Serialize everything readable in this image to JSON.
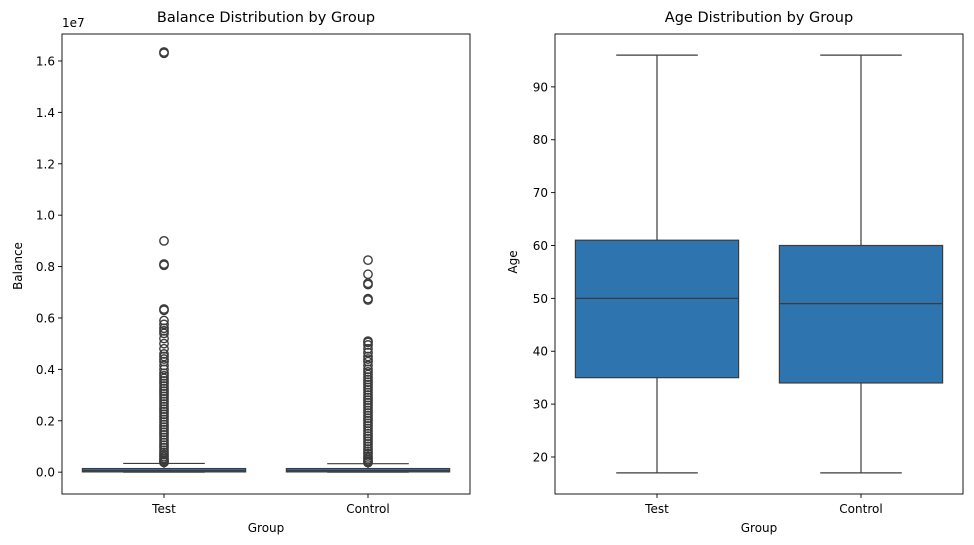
{
  "figure": {
    "background": "#ffffff"
  },
  "style": {
    "box_fill": "#2e75b0",
    "line_color": "#3b3b3b",
    "axis_color": "#000000"
  },
  "chart_data": [
    {
      "type": "box",
      "title": "Balance Distribution by Group",
      "xlabel": "Group",
      "ylabel": "Balance",
      "y_offset_label": "1e7",
      "categories": [
        "Test",
        "Control"
      ],
      "ylim": [
        -850000,
        17050000
      ],
      "yticks": [
        0,
        2000000,
        4000000,
        6000000,
        8000000,
        10000000,
        12000000,
        14000000,
        16000000
      ],
      "ytick_labels": [
        "0.0",
        "0.2",
        "0.4",
        "0.6",
        "0.8",
        "1.0",
        "1.2",
        "1.4",
        "1.6"
      ],
      "boxes": [
        {
          "name": "Test",
          "whisker_low": 0,
          "q1": 10000,
          "median": 60000,
          "q3": 140000,
          "whisker_high": 340000,
          "outliers": [
            380000,
            420000,
            470000,
            530000,
            600000,
            680000,
            760000,
            850000,
            950000,
            1050000,
            1150000,
            1250000,
            1350000,
            1450000,
            1550000,
            1650000,
            1750000,
            1850000,
            1950000,
            2050000,
            2150000,
            2250000,
            2350000,
            2450000,
            2550000,
            2650000,
            2750000,
            2850000,
            2950000,
            3050000,
            3150000,
            3250000,
            3350000,
            3450000,
            3550000,
            3650000,
            3750000,
            3850000,
            4000000,
            4150000,
            4300000,
            4400000,
            4500000,
            4600000,
            4800000,
            5000000,
            5200000,
            5400000,
            5500000,
            5600000,
            5750000,
            5900000,
            6300000,
            6350000,
            8050000,
            8100000,
            9000000,
            16300000,
            16350000
          ]
        },
        {
          "name": "Control",
          "whisker_low": 0,
          "q1": 10000,
          "median": 60000,
          "q3": 140000,
          "whisker_high": 330000,
          "outliers": [
            370000,
            420000,
            480000,
            550000,
            630000,
            720000,
            810000,
            900000,
            1000000,
            1100000,
            1200000,
            1300000,
            1400000,
            1500000,
            1600000,
            1700000,
            1800000,
            1900000,
            2000000,
            2100000,
            2200000,
            2300000,
            2400000,
            2500000,
            2600000,
            2700000,
            2800000,
            2900000,
            3000000,
            3100000,
            3200000,
            3300000,
            3400000,
            3500000,
            3600000,
            3700000,
            3800000,
            3900000,
            4000000,
            4150000,
            4300000,
            4400000,
            4500000,
            4650000,
            4800000,
            4950000,
            5050000,
            5100000,
            6700000,
            6750000,
            7300000,
            7350000,
            7700000,
            8250000
          ]
        }
      ]
    },
    {
      "type": "box",
      "title": "Age Distribution by Group",
      "xlabel": "Group",
      "ylabel": "Age",
      "categories": [
        "Test",
        "Control"
      ],
      "ylim": [
        13,
        100
      ],
      "yticks": [
        20,
        30,
        40,
        50,
        60,
        70,
        80,
        90
      ],
      "ytick_labels": [
        "20",
        "30",
        "40",
        "50",
        "60",
        "70",
        "80",
        "90"
      ],
      "boxes": [
        {
          "name": "Test",
          "whisker_low": 17,
          "q1": 35,
          "median": 50,
          "q3": 61,
          "whisker_high": 96,
          "outliers": []
        },
        {
          "name": "Control",
          "whisker_low": 17,
          "q1": 34,
          "median": 49,
          "q3": 60,
          "whisker_high": 96,
          "outliers": []
        }
      ]
    }
  ]
}
